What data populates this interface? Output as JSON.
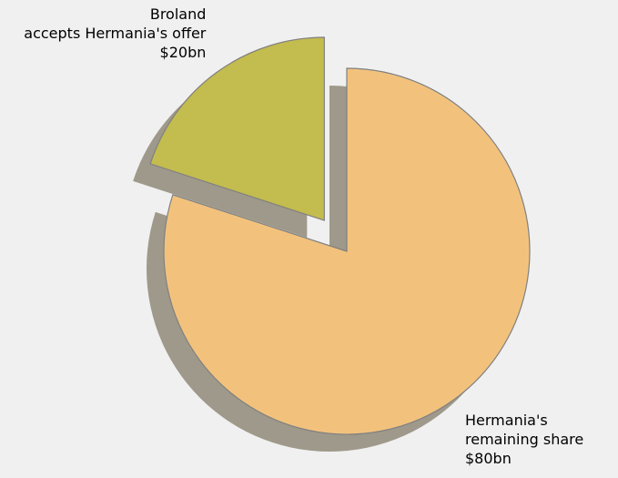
{
  "chart_data": {
    "type": "pie",
    "title": "",
    "slices": [
      {
        "label_lines": [
          "Broland",
          "accepts Hermania's offer",
          "$20bn"
        ],
        "value": 20,
        "color": "#c3bc4f",
        "exploded": true
      },
      {
        "label_lines": [
          "Hermania's",
          "remaining share",
          "$80bn"
        ],
        "value": 80,
        "color": "#f2c27d",
        "exploded": false
      }
    ],
    "start_angle_deg": 90,
    "direction": "counterclockwise",
    "shadow": true,
    "colors": {
      "background": "#f0f0f0",
      "edge": "#808080",
      "shadow": "#8a8370"
    }
  }
}
